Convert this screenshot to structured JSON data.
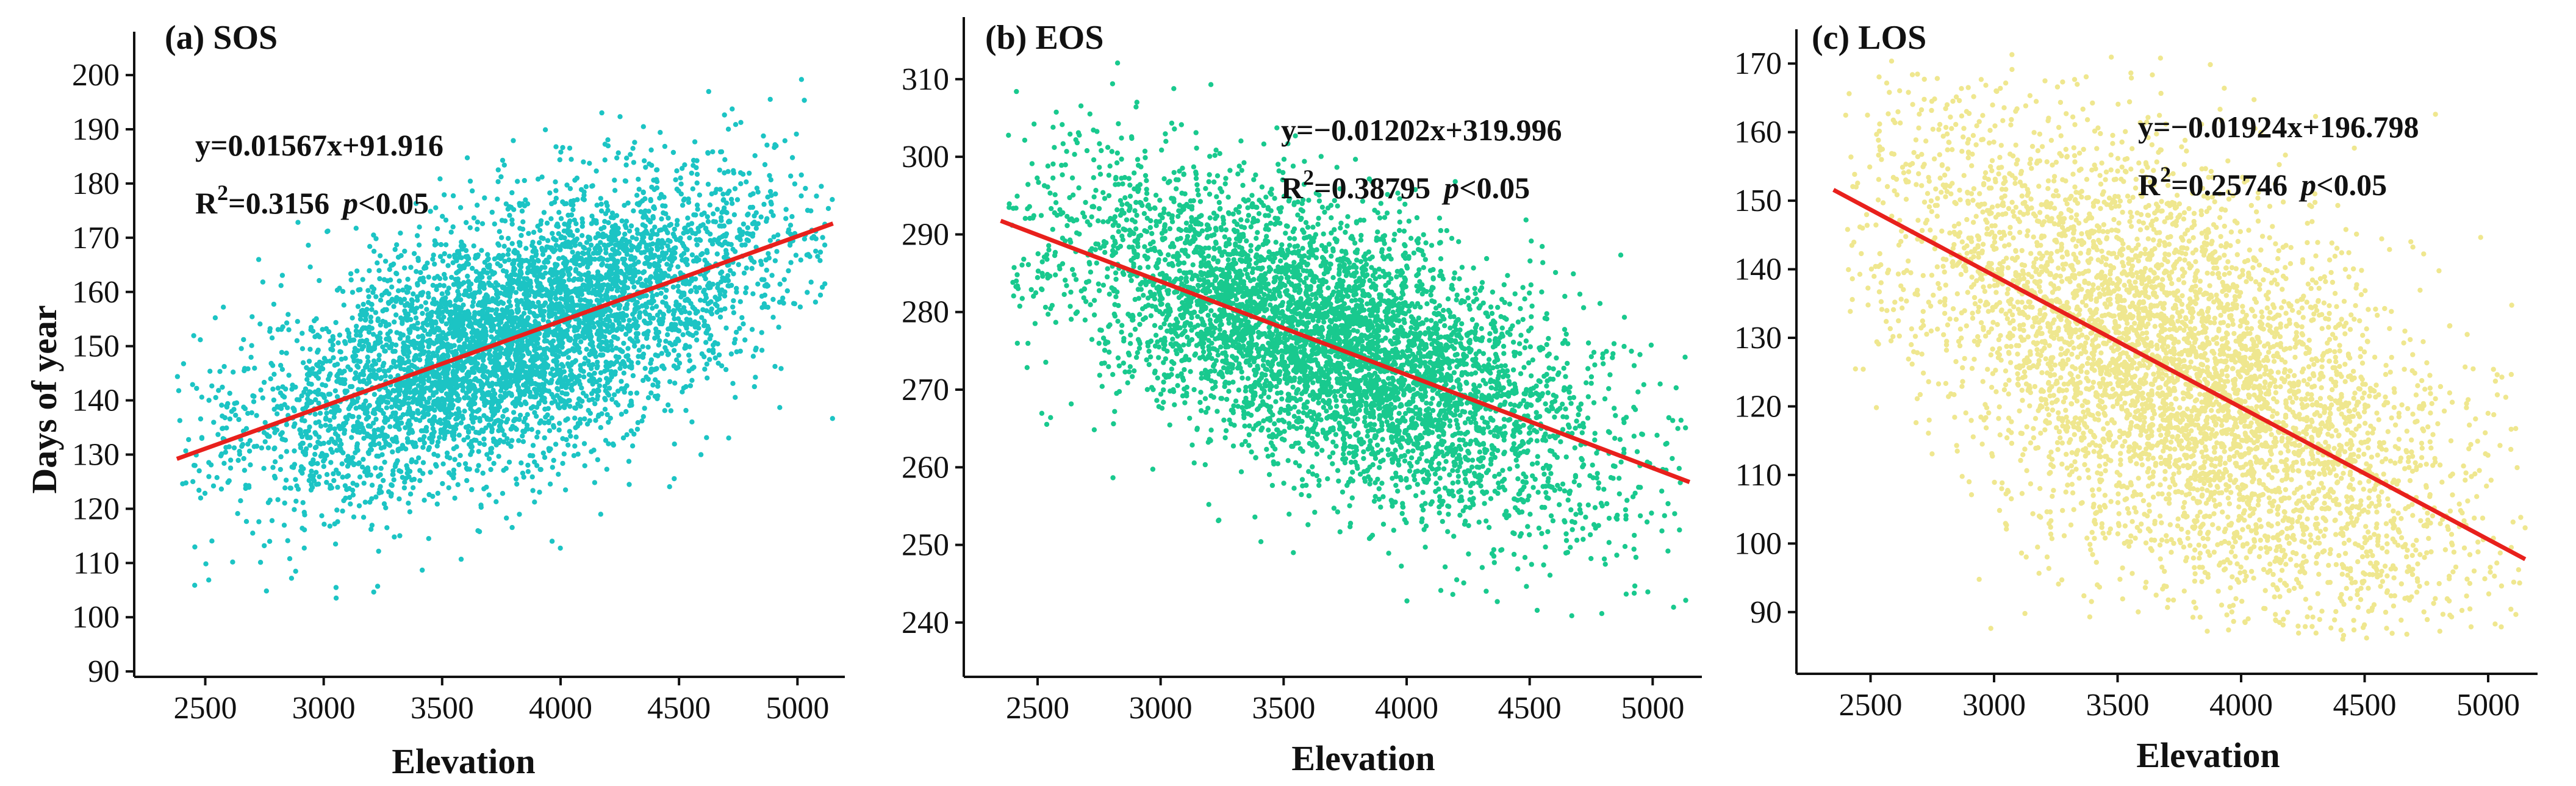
{
  "chart_data": [
    {
      "type": "scatter",
      "title": "(a) SOS",
      "xlabel": "Elevation",
      "ylabel": "Days of year",
      "xlim": [
        2200,
        5200
      ],
      "ylim": [
        89,
        208
      ],
      "xticks": [
        2500,
        3000,
        3500,
        4000,
        4500,
        5000
      ],
      "yticks": [
        90,
        100,
        110,
        120,
        130,
        140,
        150,
        160,
        170,
        180,
        190,
        200
      ],
      "point_color": "#1cc4c4",
      "fit_color": "#e8201c",
      "fit": {
        "slope": 0.01567,
        "intercept": 91.916,
        "x_range": [
          2380,
          5150
        ]
      },
      "equation": "y=0.01567x+91.916",
      "r2_label": "R",
      "r2_sup": "2",
      "r2_value": "=0.3156",
      "p_label": "p",
      "p_value": "<0.05",
      "cloud": {
        "n": 5200,
        "x_center": 3800,
        "x_spread": 560,
        "x_min": 2380,
        "x_max": 5150,
        "y_sd": 11.5,
        "y_min": 94,
        "y_max": 203
      }
    },
    {
      "type": "scatter",
      "title": "(b) EOS",
      "xlabel": "Elevation",
      "ylabel": "",
      "xlim": [
        2200,
        5200
      ],
      "ylim": [
        233,
        318
      ],
      "xticks": [
        2500,
        3000,
        3500,
        4000,
        4500,
        5000
      ],
      "yticks": [
        240,
        250,
        260,
        270,
        280,
        290,
        300,
        310
      ],
      "point_color": "#19c98e",
      "fit_color": "#e8201c",
      "fit": {
        "slope": -0.01202,
        "intercept": 319.996,
        "x_range": [
          2350,
          5150
        ]
      },
      "equation": "y=−0.01202x+319.996",
      "r2_label": "R",
      "r2_sup": "2",
      "r2_value": "=0.38795",
      "p_label": "p",
      "p_value": "<0.05",
      "cloud": {
        "n": 5200,
        "x_center": 3700,
        "x_spread": 540,
        "x_min": 2380,
        "x_max": 5150,
        "y_sd": 8.5,
        "y_min": 240,
        "y_max": 313
      }
    },
    {
      "type": "scatter",
      "title": "(c) LOS",
      "xlabel": "Elevation",
      "ylabel": "",
      "xlim": [
        2200,
        5200
      ],
      "ylim": [
        81,
        175
      ],
      "xticks": [
        2500,
        3000,
        3500,
        4000,
        4500,
        5000
      ],
      "yticks": [
        90,
        100,
        110,
        120,
        130,
        140,
        150,
        160,
        170
      ],
      "point_color": "#efe78f",
      "fit_color": "#e8201c",
      "fit": {
        "slope": -0.01924,
        "intercept": 196.798,
        "x_range": [
          2350,
          5150
        ]
      },
      "equation": "y=−0.01924x+196.798",
      "r2_label": "R",
      "r2_sup": "2",
      "r2_value": "=0.25746",
      "p_label": "p",
      "p_value": "<0.05",
      "cloud": {
        "n": 5200,
        "x_center": 3750,
        "x_spread": 560,
        "x_min": 2380,
        "x_max": 5150,
        "y_sd": 15,
        "y_min": 86,
        "y_max": 172
      }
    }
  ]
}
